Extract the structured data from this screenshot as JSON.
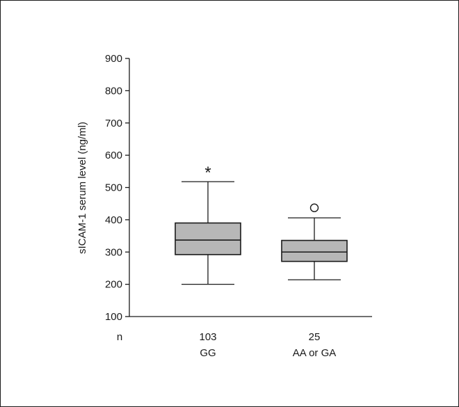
{
  "chart_data": {
    "type": "box",
    "ylabel": "sICAM-1 serum level (ng/ml)",
    "ylim": [
      100,
      900
    ],
    "yticks": [
      100,
      200,
      300,
      400,
      500,
      600,
      700,
      800,
      900
    ],
    "n_label": "n",
    "grid": false,
    "groups": [
      {
        "category": "GG",
        "n": "103",
        "whisker_low": 200,
        "q1": 292,
        "median": 337,
        "q3": 390,
        "whisker_high": 518,
        "outlier_marker": "*",
        "outlier_value": 555
      },
      {
        "category": "AA or GA",
        "n": "25",
        "whisker_low": 214,
        "q1": 271,
        "median": 300,
        "q3": 336,
        "whisker_high": 406,
        "outlier_marker": "o",
        "outlier_value": 437
      }
    ],
    "colors": {
      "box_fill": "#b7b7b7",
      "stroke": "#1a1a1a"
    }
  }
}
